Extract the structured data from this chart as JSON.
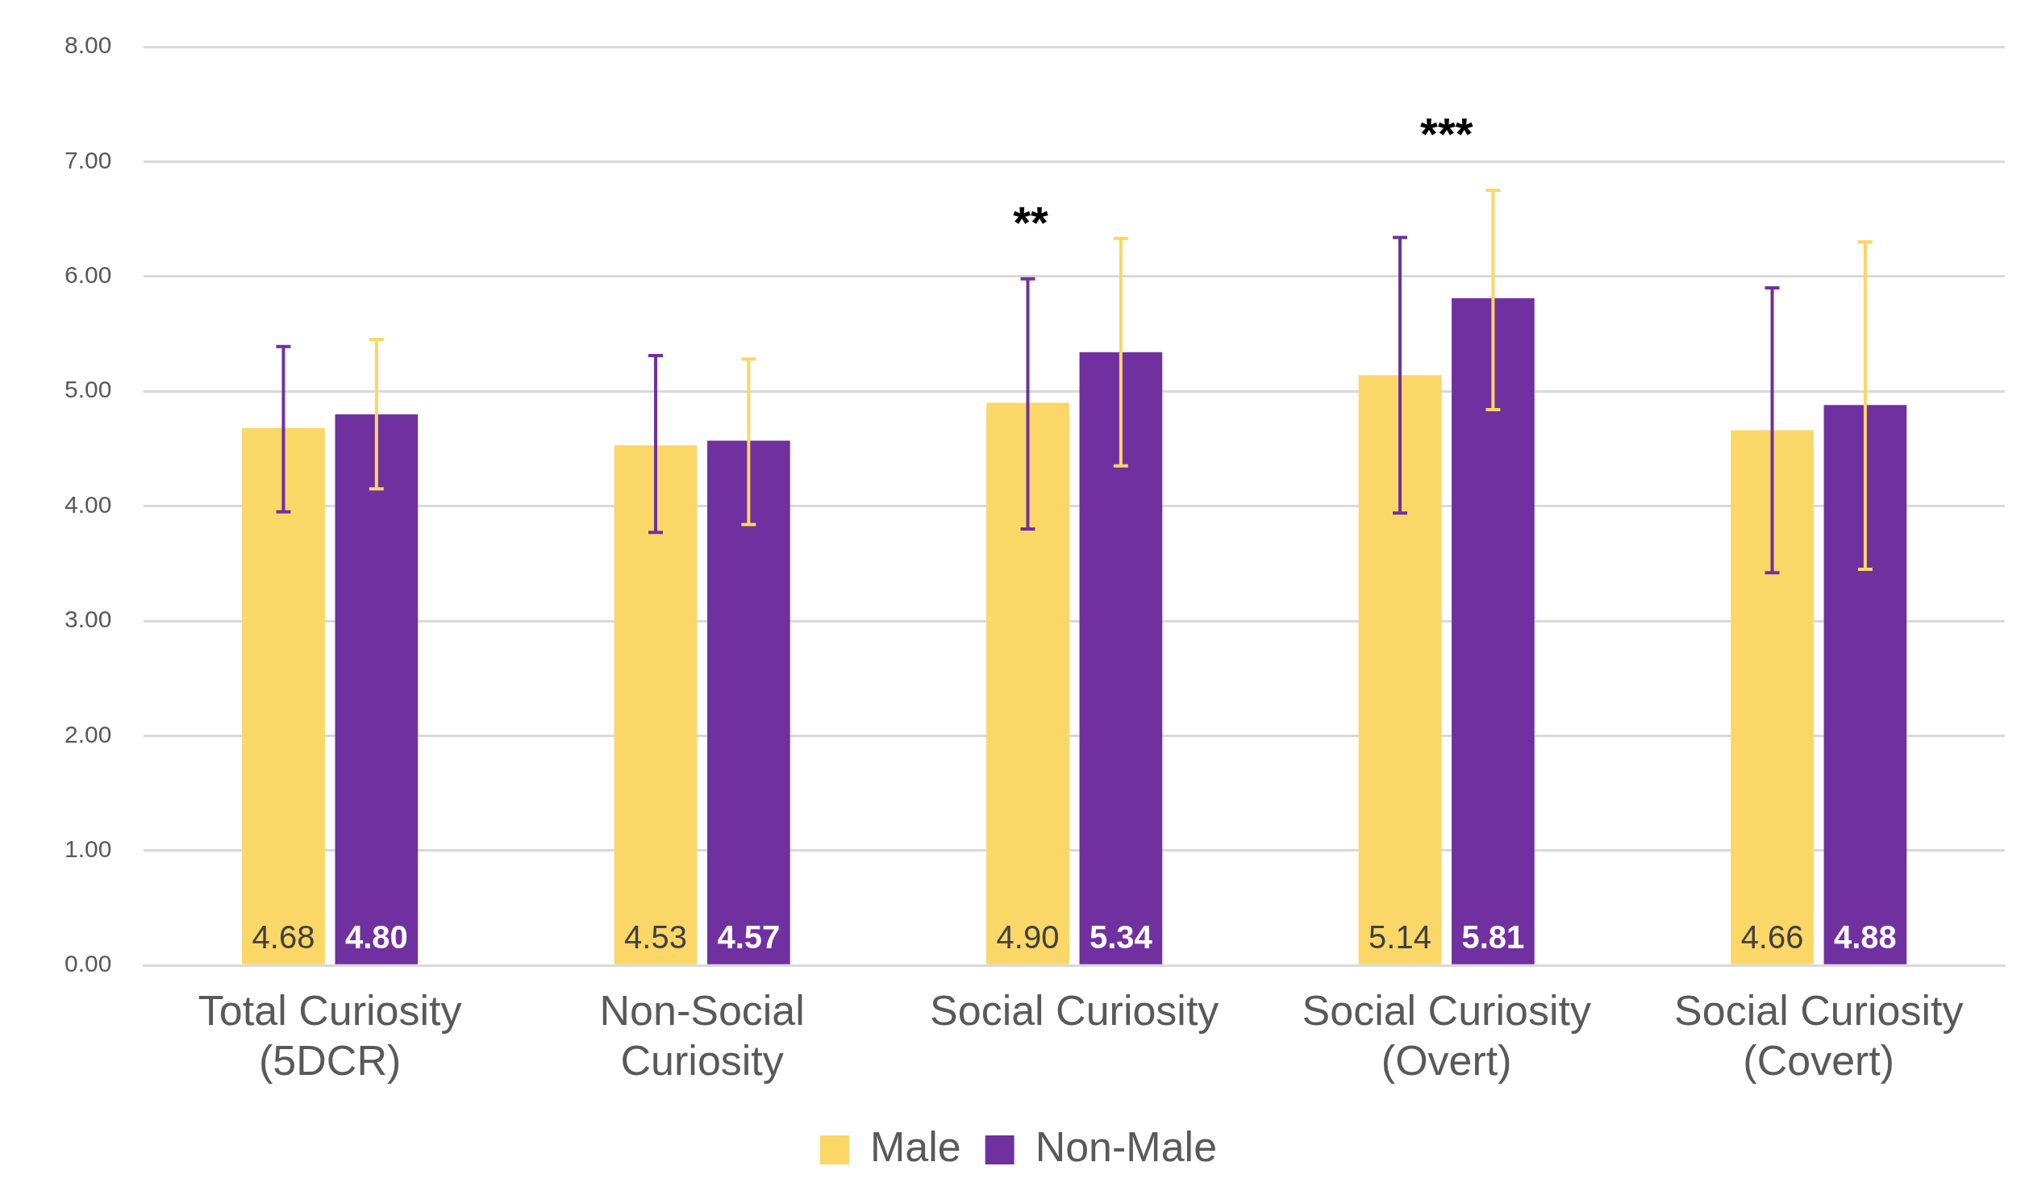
{
  "chart_data": {
    "type": "bar",
    "categories": [
      "Total Curiosity (5DCR)",
      "Non-Social Curiosity",
      "Social Curiosity",
      "Social Curiosity (Overt)",
      "Social Curiosity (Covert)"
    ],
    "series": [
      {
        "name": "Male",
        "color": "#fad766",
        "values": [
          4.68,
          4.53,
          4.9,
          5.14,
          4.66
        ],
        "value_labels": [
          "4.68",
          "4.53",
          "4.90",
          "5.14",
          "4.66"
        ],
        "errors": [
          [
            3.95,
            5.39
          ],
          [
            3.77,
            5.31
          ],
          [
            3.8,
            5.98
          ],
          [
            3.94,
            6.34
          ],
          [
            3.42,
            5.9
          ]
        ]
      },
      {
        "name": "Non-Male",
        "color": "#7030a0",
        "values": [
          4.8,
          4.57,
          5.34,
          5.81,
          4.88
        ],
        "value_labels": [
          "4.80",
          "4.57",
          "5.34",
          "5.81",
          "4.88"
        ],
        "errors": [
          [
            4.15,
            5.45
          ],
          [
            3.84,
            5.28
          ],
          [
            4.35,
            6.33
          ],
          [
            4.84,
            6.75
          ],
          [
            3.45,
            6.3
          ]
        ]
      }
    ],
    "ylim": [
      0,
      8
    ],
    "yticks": [
      {
        "value": 0,
        "label": "0.00"
      },
      {
        "value": 1,
        "label": "1.00"
      },
      {
        "value": 2,
        "label": "2.00"
      },
      {
        "value": 3,
        "label": "3.00"
      },
      {
        "value": 4,
        "label": "4.00"
      },
      {
        "value": 5,
        "label": "5.00"
      },
      {
        "value": 6,
        "label": "6.00"
      },
      {
        "value": 7,
        "label": "7.00"
      },
      {
        "value": 8,
        "label": "8.00"
      }
    ],
    "grid": "y",
    "legend": "bottom",
    "annotations": [
      "**",
      "***"
    ]
  }
}
